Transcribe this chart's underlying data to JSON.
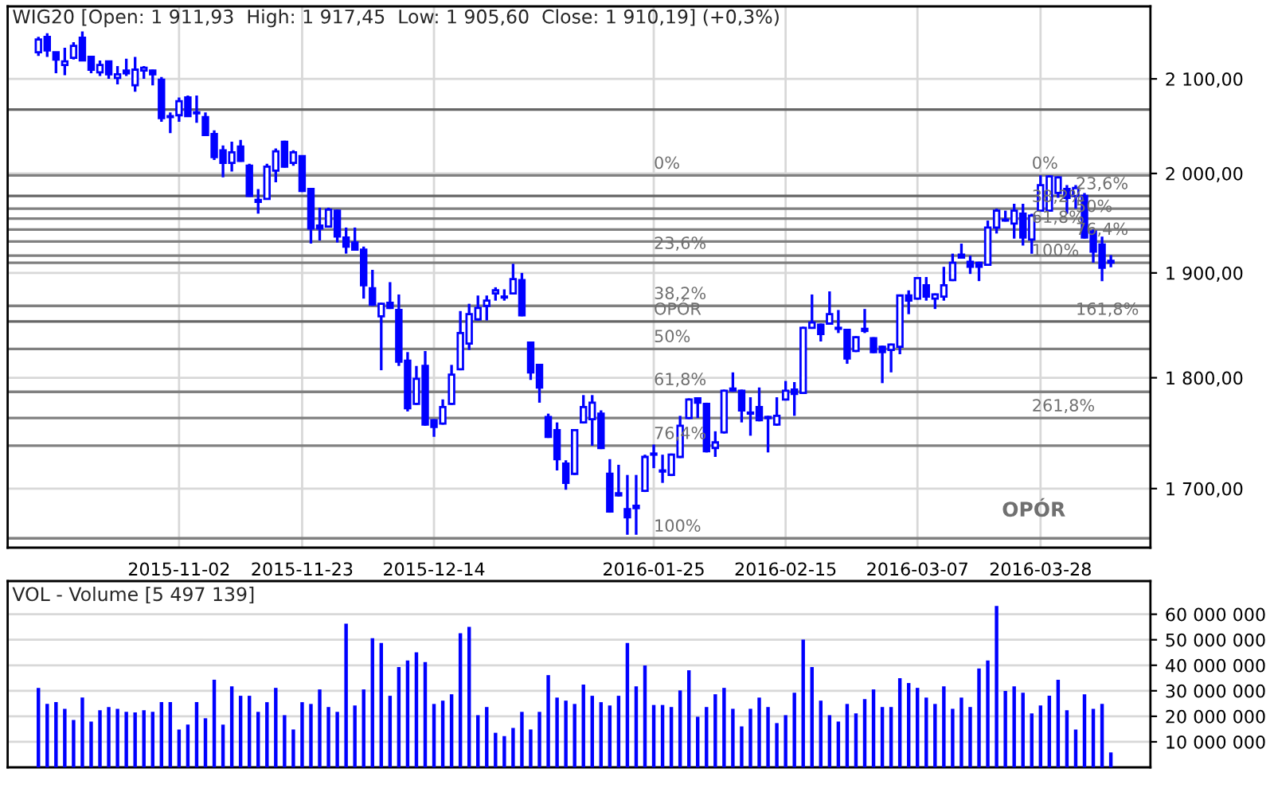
{
  "chart_data": [
    {
      "type": "candlestick",
      "title": "WIG20 [Open: 1 911,93  High: 1 917,45  Low: 1 905,60  Close: 1 910,19] (+0,3%)",
      "categories": [
        null,
        null,
        null,
        null,
        null,
        null,
        null,
        null,
        null,
        null,
        null,
        null,
        null,
        null,
        null,
        null,
        "2015-11-02",
        null,
        null,
        null,
        null,
        null,
        null,
        null,
        null,
        null,
        null,
        null,
        null,
        null,
        "2015-11-23",
        null,
        null,
        null,
        null,
        null,
        null,
        null,
        null,
        null,
        null,
        null,
        null,
        null,
        null,
        "2015-12-14",
        null,
        null,
        null,
        null,
        null,
        null,
        null,
        null,
        null,
        null,
        null,
        null,
        null,
        null,
        null,
        null,
        null,
        null,
        null,
        null,
        null,
        null,
        null,
        null,
        "2016-01-25",
        null,
        null,
        null,
        null,
        null,
        null,
        null,
        null,
        null,
        null,
        null,
        null,
        null,
        null,
        "2016-02-15",
        null,
        null,
        null,
        null,
        null,
        null,
        null,
        null,
        null,
        null,
        null,
        null,
        null,
        null,
        "2016-03-07",
        null,
        null,
        null,
        null,
        null,
        null,
        null,
        null,
        null,
        null,
        null,
        null,
        null,
        "2016-03-28",
        null,
        null,
        null,
        null,
        null,
        null,
        null,
        null
      ],
      "ohlc": [
        [
          2129,
          2146,
          2125,
          2143
        ],
        [
          2146,
          2150,
          2124,
          2131
        ],
        [
          2129,
          2129,
          2106,
          2121
        ],
        [
          2115,
          2134,
          2104,
          2119
        ],
        [
          2123,
          2140,
          2121,
          2136
        ],
        [
          2145,
          2152,
          2120,
          2120
        ],
        [
          2124,
          2125,
          2106,
          2110
        ],
        [
          2107,
          2120,
          2103,
          2115
        ],
        [
          2119,
          2120,
          2100,
          2105
        ],
        [
          2101,
          2114,
          2094,
          2105
        ],
        [
          2109,
          2122,
          2103,
          2106
        ],
        [
          2093,
          2124,
          2086,
          2110
        ],
        [
          2109,
          2114,
          2100,
          2112
        ],
        [
          2109,
          2110,
          2093,
          2105
        ],
        [
          2099,
          2102,
          2054,
          2058
        ],
        [
          2060,
          2064,
          2042,
          2059
        ],
        [
          2061,
          2080,
          2054,
          2076
        ],
        [
          2080,
          2082,
          2059,
          2060
        ],
        [
          2064,
          2082,
          2053,
          2063
        ],
        [
          2059,
          2064,
          2039,
          2040
        ],
        [
          2041,
          2045,
          2014,
          2017
        ],
        [
          2024,
          2029,
          1996,
          2011
        ],
        [
          2011,
          2033,
          2002,
          2022
        ],
        [
          2028,
          2035,
          2012,
          2013
        ],
        [
          2008,
          2010,
          1976,
          1977
        ],
        [
          1973,
          1984,
          1959,
          1971
        ],
        [
          1974,
          2010,
          1973,
          2007
        ],
        [
          2003,
          2026,
          1991,
          2023
        ],
        [
          2033,
          2034,
          2006,
          2007
        ],
        [
          2011,
          2024,
          2008,
          2022
        ],
        [
          2018,
          2019,
          1981,
          1982
        ],
        [
          1984,
          1985,
          1929,
          1944
        ],
        [
          1947,
          1965,
          1932,
          1944
        ],
        [
          1946,
          1965,
          1945,
          1963
        ],
        [
          1962,
          1963,
          1930,
          1936
        ],
        [
          1935,
          1945,
          1919,
          1926
        ],
        [
          1930,
          1945,
          1922,
          1923
        ],
        [
          1923,
          1926,
          1875,
          1888
        ],
        [
          1885,
          1903,
          1868,
          1869
        ],
        [
          1858,
          1871,
          1807,
          1870
        ],
        [
          1871,
          1891,
          1865,
          1866
        ],
        [
          1864,
          1879,
          1811,
          1815
        ],
        [
          1816,
          1824,
          1769,
          1772
        ],
        [
          1776,
          1811,
          1775,
          1799
        ],
        [
          1811,
          1825,
          1756,
          1757
        ],
        [
          1761,
          1762,
          1746,
          1755
        ],
        [
          1758,
          1780,
          1757,
          1773
        ],
        [
          1776,
          1812,
          1775,
          1803
        ],
        [
          1808,
          1863,
          1807,
          1842
        ],
        [
          1832,
          1870,
          1826,
          1860
        ],
        [
          1855,
          1878,
          1854,
          1866
        ],
        [
          1868,
          1878,
          1854,
          1873
        ],
        [
          1880,
          1886,
          1873,
          1883
        ],
        [
          1877,
          1884,
          1873,
          1876
        ],
        [
          1880,
          1909,
          1879,
          1894
        ],
        [
          1893,
          1900,
          1858,
          1859
        ],
        [
          1833,
          1834,
          1798,
          1805
        ],
        [
          1812,
          1813,
          1777,
          1791
        ],
        [
          1764,
          1767,
          1745,
          1746
        ],
        [
          1752,
          1759,
          1716,
          1726
        ],
        [
          1722,
          1725,
          1699,
          1705
        ],
        [
          1713,
          1753,
          1712,
          1752
        ],
        [
          1759,
          1784,
          1758,
          1773
        ],
        [
          1762,
          1784,
          1738,
          1777
        ],
        [
          1767,
          1770,
          1735,
          1736
        ],
        [
          1713,
          1726,
          1679,
          1680
        ],
        [
          1696,
          1721,
          1693,
          1694
        ],
        [
          1682,
          1712,
          1660,
          1675
        ],
        [
          1685,
          1712,
          1660,
          1683
        ],
        [
          1698,
          1730,
          1697,
          1728
        ],
        [
          1731,
          1739,
          1718,
          1730
        ],
        [
          1716,
          1730,
          1705,
          1715
        ],
        [
          1712,
          1731,
          1711,
          1730
        ],
        [
          1728,
          1765,
          1727,
          1756
        ],
        [
          1763,
          1781,
          1762,
          1780
        ],
        [
          1781,
          1782,
          1763,
          1777
        ],
        [
          1776,
          1777,
          1732,
          1733
        ],
        [
          1736,
          1751,
          1728,
          1741
        ],
        [
          1750,
          1789,
          1749,
          1788
        ],
        [
          1790,
          1805,
          1787,
          1788
        ],
        [
          1788,
          1789,
          1759,
          1770
        ],
        [
          1768,
          1782,
          1747,
          1767
        ],
        [
          1773,
          1791,
          1760,
          1761
        ],
        [
          1764,
          1765,
          1732,
          1763
        ],
        [
          1757,
          1782,
          1756,
          1765
        ],
        [
          1780,
          1797,
          1779,
          1788
        ],
        [
          1789,
          1796,
          1765,
          1785
        ],
        [
          1786,
          1848,
          1785,
          1847
        ],
        [
          1847,
          1879,
          1846,
          1852
        ],
        [
          1850,
          1851,
          1834,
          1841
        ],
        [
          1851,
          1882,
          1850,
          1860
        ],
        [
          1847,
          1864,
          1842,
          1846
        ],
        [
          1845,
          1846,
          1813,
          1818
        ],
        [
          1825,
          1839,
          1824,
          1838
        ],
        [
          1844,
          1865,
          1842,
          1846
        ],
        [
          1837,
          1838,
          1823,
          1824
        ],
        [
          1829,
          1830,
          1795,
          1824
        ],
        [
          1826,
          1832,
          1805,
          1831
        ],
        [
          1829,
          1879,
          1822,
          1878
        ],
        [
          1878,
          1883,
          1860,
          1873
        ],
        [
          1875,
          1896,
          1874,
          1895
        ],
        [
          1888,
          1896,
          1873,
          1877
        ],
        [
          1875,
          1880,
          1865,
          1879
        ],
        [
          1877,
          1906,
          1873,
          1888
        ],
        [
          1893,
          1919,
          1892,
          1910
        ],
        [
          1918,
          1929,
          1914,
          1915
        ],
        [
          1911,
          1917,
          1899,
          1906
        ],
        [
          1910,
          1911,
          1892,
          1906
        ],
        [
          1908,
          1952,
          1907,
          1945
        ],
        [
          1945,
          1964,
          1939,
          1962
        ],
        [
          1952,
          1962,
          1951,
          1953
        ],
        [
          1949,
          1969,
          1934,
          1962
        ],
        [
          1959,
          1969,
          1927,
          1935
        ],
        [
          1933,
          1959,
          1919,
          1957
        ],
        [
          1962,
          1998,
          1961,
          1988
        ],
        [
          1962,
          1998,
          1961,
          1997
        ],
        [
          1980,
          1997,
          1975,
          1996
        ],
        [
          1984,
          1988,
          1959,
          1975
        ],
        [
          1977,
          1988,
          1964,
          1985
        ],
        [
          1977,
          1980,
          1934,
          1935
        ],
        [
          1941,
          1943,
          1910,
          1921
        ],
        [
          1928,
          1936,
          1892,
          1905
        ],
        [
          1911.93,
          1917.45,
          1905.6,
          1910.19
        ]
      ],
      "color": "#0000ff",
      "log": true,
      "ylim": [
        1649,
        2180
      ],
      "yticks": [
        {
          "value": 1700,
          "label": "1 700,00"
        },
        {
          "value": 1800,
          "label": "1 800,00"
        },
        {
          "value": 1900,
          "label": "1 900,00"
        },
        {
          "value": 2000,
          "label": "2 000,00"
        },
        {
          "value": 2100,
          "label": "2 100,00"
        }
      ],
      "grid": true,
      "ref_lines": [
        {
          "axis": "y",
          "value": 2067,
          "color": "#666666"
        },
        {
          "axis": "y",
          "value": 1977,
          "color": "#666666"
        },
        {
          "axis": "y",
          "value": 1853,
          "color": "#666666"
        },
        {
          "axis": "y",
          "value": 1998,
          "color": "#808080"
        },
        {
          "axis": "y",
          "value": 1917,
          "color": "#808080"
        },
        {
          "axis": "y",
          "value": 1868,
          "color": "#808080"
        },
        {
          "axis": "y",
          "value": 1827,
          "color": "#808080"
        },
        {
          "axis": "y",
          "value": 1787,
          "color": "#808080"
        },
        {
          "axis": "y",
          "value": 1738,
          "color": "#808080"
        },
        {
          "axis": "y",
          "value": 1657,
          "color": "#808080"
        },
        {
          "axis": "y",
          "value": 1964,
          "color": "#808080"
        },
        {
          "axis": "y",
          "value": 1954,
          "color": "#808080"
        },
        {
          "axis": "y",
          "value": 1943,
          "color": "#808080"
        },
        {
          "axis": "y",
          "value": 1931,
          "color": "#808080"
        },
        {
          "axis": "y",
          "value": 1910,
          "color": "#808080"
        },
        {
          "axis": "y",
          "value": 1763,
          "color": "#808080"
        }
      ],
      "annotations": [
        {
          "text": "0%",
          "x": "2016-01-25",
          "y": 1998
        },
        {
          "text": "23,6%",
          "x": "2016-01-25",
          "y": 1917
        },
        {
          "text": "38,2%",
          "x": "2016-01-25",
          "y": 1868
        },
        {
          "text": "OPÓR",
          "x": "2016-01-25",
          "y": 1853
        },
        {
          "text": "50%",
          "x": "2016-01-25",
          "y": 1827
        },
        {
          "text": "61,8%",
          "x": "2016-01-25",
          "y": 1787
        },
        {
          "text": "76,4%",
          "x": "2016-01-25",
          "y": 1738
        },
        {
          "text": "100%",
          "x": "2016-01-25",
          "y": 1657
        },
        {
          "text": "0%",
          "y": 1998
        },
        {
          "text": "23,6%",
          "y": 1977
        },
        {
          "text": "38,2%",
          "y": 1964
        },
        {
          "text": "50%",
          "y": 1954
        },
        {
          "text": "61,8%",
          "y": 1943
        },
        {
          "text": "76,4%",
          "y": 1931
        },
        {
          "text": "100%",
          "y": 1910
        },
        {
          "text": "161,8%",
          "y": 1853
        },
        {
          "text": "261,8%",
          "y": 1763
        },
        "OPÓR"
      ]
    },
    {
      "type": "bar",
      "title": "VOL - Volume [5 497 139]",
      "color": "#0000ff",
      "categories": [
        null,
        null,
        null,
        null,
        null,
        null,
        null,
        null,
        null,
        null,
        null,
        null,
        null,
        null,
        null,
        null,
        null,
        null,
        null,
        null,
        null,
        null,
        null,
        null,
        null,
        null,
        null,
        null,
        null,
        null,
        null,
        null,
        null,
        null,
        null,
        null,
        null,
        null,
        null,
        null,
        null,
        null,
        null,
        null,
        null,
        null,
        null,
        null,
        null,
        null,
        null,
        null,
        null,
        null,
        null,
        null,
        null,
        null,
        null,
        null,
        null,
        null,
        null,
        null,
        null,
        null,
        null,
        null,
        null,
        null,
        null,
        null,
        null,
        null,
        null,
        null,
        null,
        null,
        null,
        null,
        null,
        null,
        null,
        null,
        null,
        null,
        null,
        null,
        null,
        null,
        null,
        null,
        null,
        null,
        null,
        null,
        null,
        null,
        null,
        null,
        null,
        null,
        null,
        null,
        null,
        null,
        null,
        null,
        null,
        null,
        null,
        null,
        null,
        null,
        null,
        null,
        null,
        null,
        null,
        null,
        null,
        null,
        null
      ],
      "values": [
        30800000,
        24500000,
        25200000,
        22600000,
        18200000,
        27000000,
        17600000,
        22000000,
        23300000,
        22600000,
        21400000,
        21200000,
        22000000,
        21400000,
        25200000,
        25200000,
        14500000,
        16400000,
        25200000,
        18900000,
        34000000,
        16400000,
        31400000,
        27700000,
        27700000,
        21400000,
        25200000,
        30800000,
        20100000,
        14500000,
        25200000,
        24500000,
        30200000,
        23300000,
        21400000,
        56000000,
        23900000,
        30200000,
        50300000,
        48400000,
        27700000,
        39000000,
        41500000,
        44700000,
        40900000,
        24500000,
        25800000,
        28300000,
        52200000,
        54700000,
        20100000,
        23300000,
        13200000,
        11900000,
        15100000,
        21400000,
        14500000,
        21400000,
        35800000,
        27000000,
        25800000,
        24500000,
        32100000,
        27700000,
        25200000,
        23900000,
        27700000,
        48400000,
        31400000,
        39600000,
        24100000,
        24100000,
        23300000,
        29800000,
        37700000,
        19500000,
        23300000,
        28300000,
        30800000,
        22600000,
        15700000,
        22600000,
        27000000,
        23300000,
        17000000,
        20100000,
        28900000,
        49700000,
        39000000,
        25800000,
        20100000,
        17600000,
        24500000,
        20800000,
        26400000,
        30200000,
        23300000,
        23300000,
        34600000,
        32700000,
        30800000,
        27000000,
        24500000,
        31400000,
        22600000,
        27000000,
        23300000,
        38400000,
        41500000,
        62900000,
        29600000,
        31400000,
        28900000,
        20800000,
        23900000,
        27700000,
        34000000,
        22000000,
        14500000,
        28300000,
        22600000,
        24500000,
        5500000
      ],
      "ylim": [
        0,
        73000000
      ],
      "yticks": [
        {
          "value": 10000000,
          "label": "10 000 000"
        },
        {
          "value": 20000000,
          "label": "20 000 000"
        },
        {
          "value": 30000000,
          "label": "30 000 000"
        },
        {
          "value": 40000000,
          "label": "40 000 000"
        },
        {
          "value": 50000000,
          "label": "50 000 000"
        },
        {
          "value": 60000000,
          "label": "60 000 000"
        }
      ],
      "grid": "y"
    }
  ]
}
